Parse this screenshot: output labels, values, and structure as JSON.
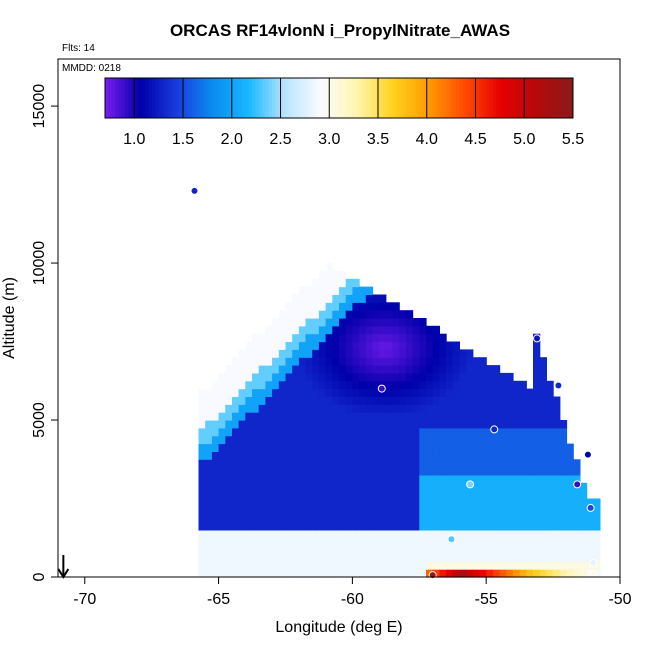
{
  "chart_data": {
    "type": "heatmap",
    "title": "ORCAS RF14vlonN i_PropylNitrate_AWAS",
    "annotations": {
      "flights": "Flts: 14",
      "date": "MMDD: 0218"
    },
    "xlabel": "Longitude (deg E)",
    "ylabel": "Altitude (m)",
    "xlim": [
      -71,
      -50
    ],
    "ylim": [
      0,
      16500
    ],
    "xticks": [
      -70,
      -65,
      -60,
      -55,
      -50
    ],
    "yticks": [
      0,
      5000,
      10000,
      15000
    ],
    "xtick_labels": [
      "-70",
      "-65",
      "-60",
      "-55",
      "-50"
    ],
    "ytick_labels": [
      "0",
      "5000",
      "10000",
      "15000"
    ],
    "colorbar": {
      "range": [
        0.7,
        5.5
      ],
      "ticks": [
        1.0,
        1.5,
        2.0,
        2.5,
        3.0,
        3.5,
        4.0,
        4.5,
        5.0,
        5.5
      ],
      "tick_labels": [
        "1.0",
        "1.5",
        "2.0",
        "2.5",
        "3.0",
        "3.5",
        "4.0",
        "4.5",
        "5.0",
        "5.5"
      ],
      "colors": [
        "#7a1cf0",
        "#0000aa",
        "#1a3cde",
        "#0a8cf0",
        "#18b8ff",
        "#b8e4ff",
        "#fbfbff",
        "#fff6b0",
        "#ffd21e",
        "#ff9a00",
        "#ff4a00",
        "#e60000",
        "#b40a0a",
        "#8c1a1a"
      ]
    },
    "samples": [
      {
        "lon": -58.9,
        "alt": 6000,
        "value": 0.9
      },
      {
        "lon": -54.7,
        "alt": 4700,
        "value": 1.3
      },
      {
        "lon": -53.1,
        "alt": 7600,
        "value": 1.2
      },
      {
        "lon": -52.3,
        "alt": 6100,
        "value": 1.3
      },
      {
        "lon": -51.2,
        "alt": 3900,
        "value": 1.1
      },
      {
        "lon": -51.6,
        "alt": 2950,
        "value": 0.9
      },
      {
        "lon": -55.6,
        "alt": 2950,
        "value": 2.4
      },
      {
        "lon": -51.1,
        "alt": 2200,
        "value": 1.5
      },
      {
        "lon": -56.3,
        "alt": 1200,
        "value": 2.3
      },
      {
        "lon": -51.0,
        "alt": 450,
        "value": 2.8
      },
      {
        "lon": -57.0,
        "alt": 60,
        "value": 5.4
      },
      {
        "lon": -51.0,
        "alt": 100,
        "value": 3.0
      },
      {
        "lon": -65.9,
        "alt": 12300,
        "value": 1.3
      }
    ],
    "flight_direction_arrow": {
      "lon": -70.8,
      "alt_top": 700,
      "alt_bottom": 0
    }
  }
}
